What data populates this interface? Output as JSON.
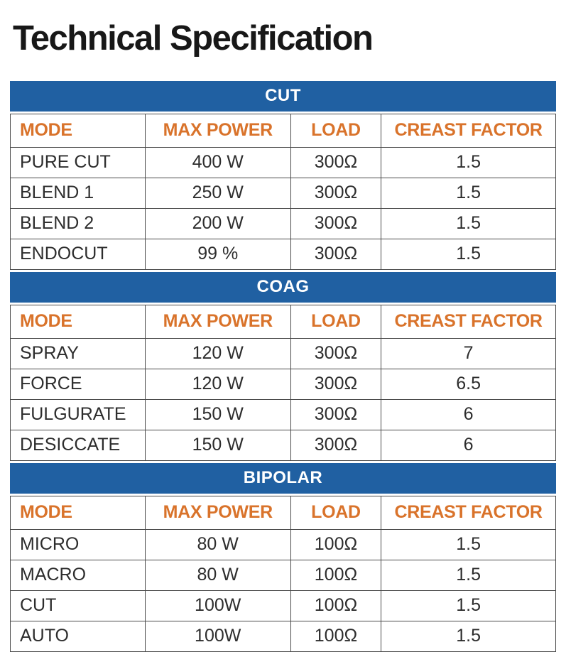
{
  "page": {
    "title": "Technical Specification"
  },
  "colors": {
    "section_band_blue": "#2060A2",
    "column_header_orange": "#D9732B",
    "data_text": "#2d2d2d",
    "cell_border": "#4a4a4a",
    "band_text": "#ffffff"
  },
  "columns": [
    "MODE",
    "MAX POWER",
    "LOAD",
    "CREAST FACTOR"
  ],
  "sections": [
    {
      "name": "CUT",
      "rows": [
        [
          "PURE CUT",
          "400 W",
          "300Ω",
          "1.5"
        ],
        [
          "BLEND 1",
          "250 W",
          "300Ω",
          "1.5"
        ],
        [
          "BLEND 2",
          "200 W",
          "300Ω",
          "1.5"
        ],
        [
          "ENDOCUT",
          "99 %",
          "300Ω",
          "1.5"
        ]
      ]
    },
    {
      "name": "COAG",
      "rows": [
        [
          "SPRAY",
          "120 W",
          "300Ω",
          "7"
        ],
        [
          "FORCE",
          "120 W",
          "300Ω",
          "6.5"
        ],
        [
          "FULGURATE",
          "150 W",
          "300Ω",
          "6"
        ],
        [
          "DESICCATE",
          "150 W",
          "300Ω",
          "6"
        ]
      ]
    },
    {
      "name": "BIPOLAR",
      "rows": [
        [
          "MICRO",
          "80 W",
          "100Ω",
          "1.5"
        ],
        [
          "MACRO",
          "80 W",
          "100Ω",
          "1.5"
        ],
        [
          "CUT",
          "100W",
          "100Ω",
          "1.5"
        ],
        [
          "AUTO",
          "100W",
          "100Ω",
          "1.5"
        ]
      ]
    }
  ]
}
